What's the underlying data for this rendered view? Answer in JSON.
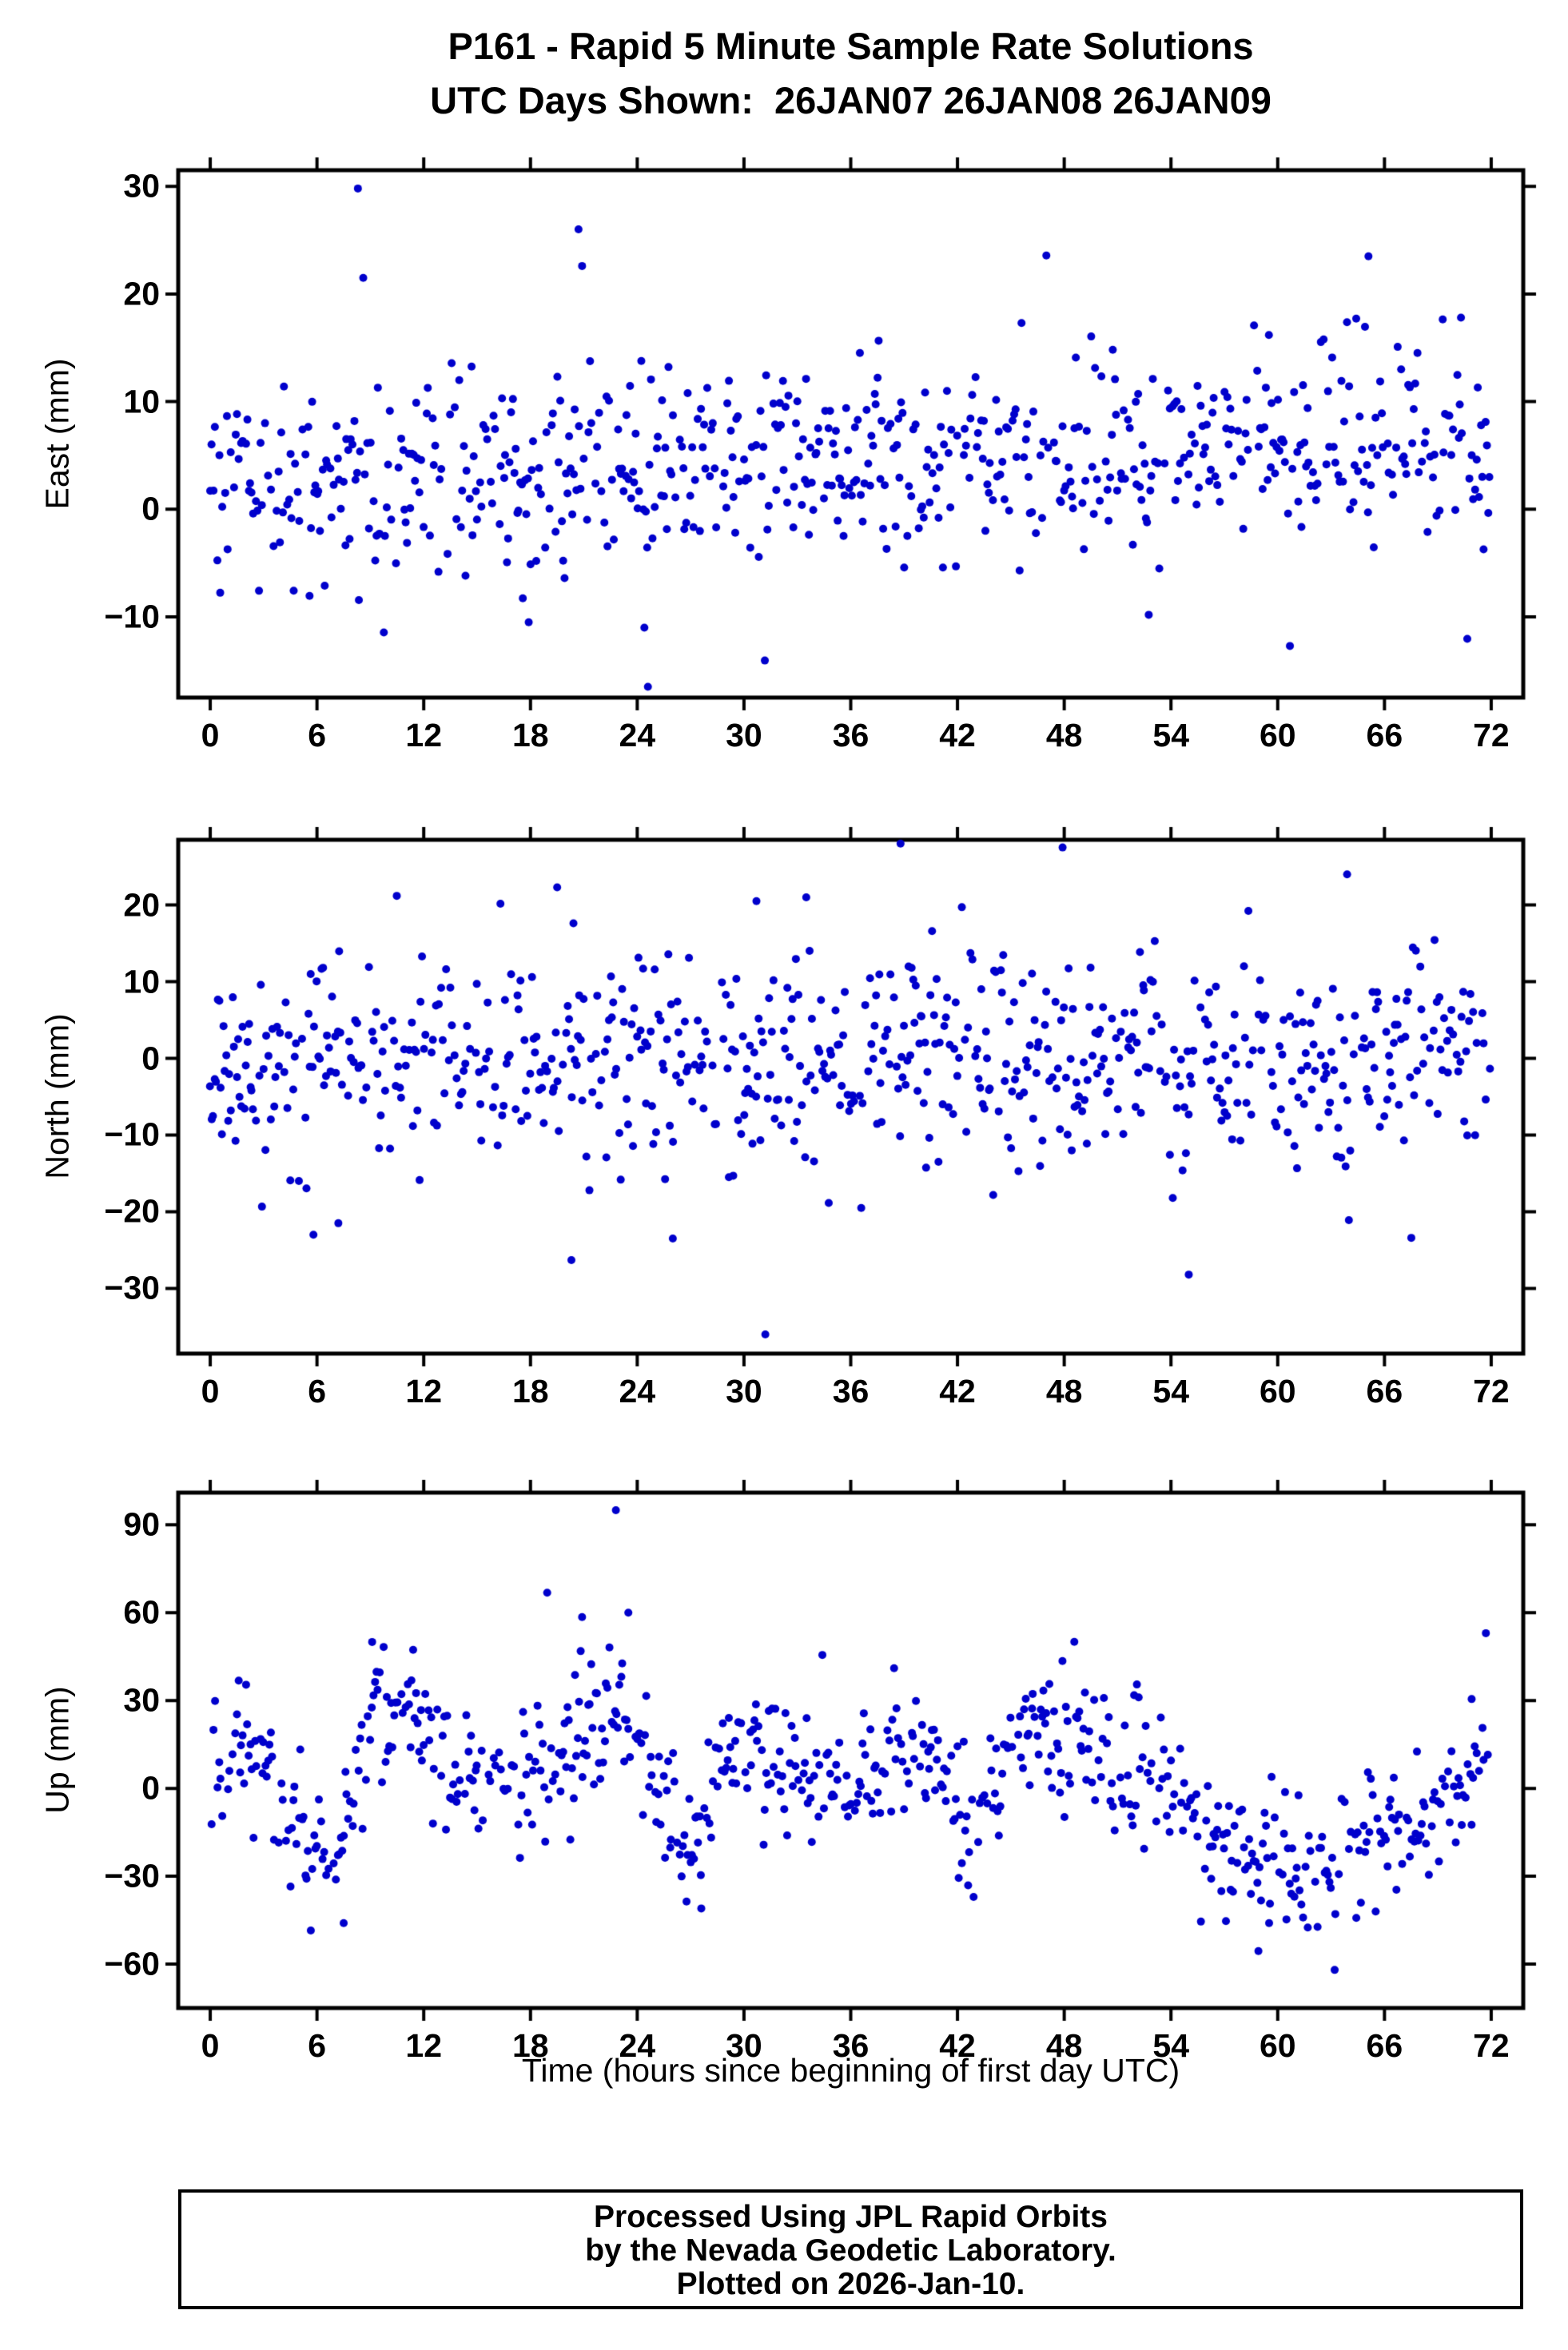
{
  "title": {
    "line1": "P161 - Rapid 5 Minute Sample Rate Solutions",
    "line2": "UTC Days Shown:  26JAN07 26JAN08 26JAN09"
  },
  "style": {
    "point_color": "#0000CC",
    "axis_color": "#000000",
    "background": "#ffffff"
  },
  "chart_data": [
    {
      "type": "scatter",
      "series_name": "East",
      "ylabel": "East (mm)",
      "xlabel": "",
      "xlim": [
        -1.8,
        73.8
      ],
      "ylim": [
        -17.5,
        31.5
      ],
      "xticks": [
        0,
        6,
        12,
        18,
        24,
        30,
        36,
        42,
        48,
        54,
        60,
        66,
        72
      ],
      "yticks": [
        -10,
        0,
        10,
        20,
        30
      ],
      "grid": false,
      "marker": "circle",
      "color": "#0000CC",
      "seed": 42,
      "slots_per_hour": 12,
      "hours": 72,
      "keep_prob": 0.78,
      "noise_std": 4.7,
      "outlier_rate": 0.05,
      "outlier_scale": 2.4,
      "clip": [
        -16.8,
        29.9
      ],
      "mean_curve": [
        [
          0,
          3
        ],
        [
          10,
          2.5
        ],
        [
          20,
          3
        ],
        [
          30,
          4
        ],
        [
          40,
          5
        ],
        [
          50,
          5
        ],
        [
          60,
          7
        ],
        [
          66,
          6
        ],
        [
          72,
          6
        ]
      ],
      "extra_points": [
        [
          8.3,
          29.8
        ],
        [
          20.7,
          26.0
        ],
        [
          20.9,
          22.6
        ],
        [
          8.6,
          21.5
        ],
        [
          65.1,
          23.5
        ],
        [
          24.6,
          -16.5
        ],
        [
          70.3,
          17.8
        ],
        [
          45.6,
          17.3
        ],
        [
          24.4,
          -11.0
        ],
        [
          17.9,
          -10.5
        ]
      ]
    },
    {
      "type": "scatter",
      "series_name": "North",
      "ylabel": "North (mm)",
      "xlabel": "",
      "xlim": [
        -1.8,
        73.8
      ],
      "ylim": [
        -38.5,
        28.5
      ],
      "xticks": [
        0,
        6,
        12,
        18,
        24,
        30,
        36,
        42,
        48,
        54,
        60,
        66,
        72
      ],
      "yticks": [
        -30,
        -20,
        -10,
        0,
        10,
        20
      ],
      "grid": false,
      "marker": "circle",
      "color": "#0000CC",
      "seed": 1337,
      "slots_per_hour": 12,
      "hours": 72,
      "keep_prob": 0.8,
      "noise_std": 6.6,
      "outlier_rate": 0.05,
      "outlier_scale": 2.2,
      "clip": [
        -36.0,
        27.5
      ],
      "mean_curve": [
        [
          0,
          -1
        ],
        [
          10,
          0
        ],
        [
          20,
          1.5
        ],
        [
          26,
          0
        ],
        [
          32,
          -2
        ],
        [
          40,
          0.5
        ],
        [
          48,
          0
        ],
        [
          56,
          -1
        ],
        [
          64,
          0
        ],
        [
          72,
          0
        ]
      ],
      "extra_points": [
        [
          31.2,
          -36.0
        ],
        [
          38.8,
          28.0
        ],
        [
          19.5,
          22.3
        ],
        [
          63.9,
          24.0
        ],
        [
          55.0,
          -28.2
        ],
        [
          20.3,
          -26.3
        ],
        [
          5.8,
          -23.0
        ],
        [
          33.5,
          21.0
        ],
        [
          30.7,
          20.5
        ],
        [
          26.0,
          -23.5
        ],
        [
          7.2,
          -21.5
        ]
      ]
    },
    {
      "type": "scatter",
      "series_name": "Up",
      "ylabel": "Up (mm)",
      "xlabel": "Time (hours since beginning of first day UTC)",
      "xlim": [
        -1.8,
        73.8
      ],
      "ylim": [
        -75,
        101
      ],
      "xticks": [
        0,
        6,
        12,
        18,
        24,
        30,
        36,
        42,
        48,
        54,
        60,
        66,
        72
      ],
      "yticks": [
        -60,
        -30,
        0,
        30,
        60,
        90
      ],
      "grid": false,
      "marker": "circle",
      "color": "#0000CC",
      "seed": 2024,
      "slots_per_hour": 12,
      "hours": 72,
      "keep_prob": 0.8,
      "noise_std": 11,
      "outlier_rate": 0.05,
      "outlier_scale": 1.9,
      "clip": [
        -62,
        95
      ],
      "mean_curve": [
        [
          0,
          8
        ],
        [
          2,
          14
        ],
        [
          4,
          -2
        ],
        [
          6,
          -20
        ],
        [
          7,
          -27
        ],
        [
          8,
          5
        ],
        [
          9,
          26
        ],
        [
          11,
          25
        ],
        [
          13,
          12
        ],
        [
          15,
          0
        ],
        [
          17,
          5
        ],
        [
          19,
          8
        ],
        [
          21,
          20
        ],
        [
          23,
          26
        ],
        [
          24,
          18
        ],
        [
          25,
          2
        ],
        [
          26,
          -12
        ],
        [
          27,
          -22
        ],
        [
          28,
          -2
        ],
        [
          30,
          12
        ],
        [
          32,
          8
        ],
        [
          34,
          4
        ],
        [
          36,
          2
        ],
        [
          38,
          10
        ],
        [
          40,
          12
        ],
        [
          41,
          4
        ],
        [
          42,
          -8
        ],
        [
          43,
          -12
        ],
        [
          44,
          2
        ],
        [
          45,
          14
        ],
        [
          46,
          18
        ],
        [
          48,
          14
        ],
        [
          50,
          10
        ],
        [
          52,
          6
        ],
        [
          54,
          -2
        ],
        [
          56,
          -18
        ],
        [
          58,
          -26
        ],
        [
          60,
          -28
        ],
        [
          62,
          -28
        ],
        [
          64,
          -24
        ],
        [
          66,
          -18
        ],
        [
          68,
          -10
        ],
        [
          70,
          -2
        ],
        [
          71,
          8
        ],
        [
          72,
          18
        ]
      ],
      "extra_points": [
        [
          22.8,
          95.0
        ],
        [
          20.9,
          58.5
        ],
        [
          23.5,
          60.0
        ],
        [
          63.2,
          -62.0
        ],
        [
          71.7,
          53.0
        ],
        [
          9.1,
          50.0
        ],
        [
          47.9,
          43.5
        ],
        [
          70.9,
          30.5
        ],
        [
          7.5,
          -46.0
        ],
        [
          27.6,
          -41.0
        ]
      ]
    }
  ],
  "footer": {
    "lines": [
      "Processed Using JPL Rapid Orbits",
      "by the Nevada Geodetic Laboratory.",
      "Plotted on 2026-Jan-10."
    ]
  }
}
